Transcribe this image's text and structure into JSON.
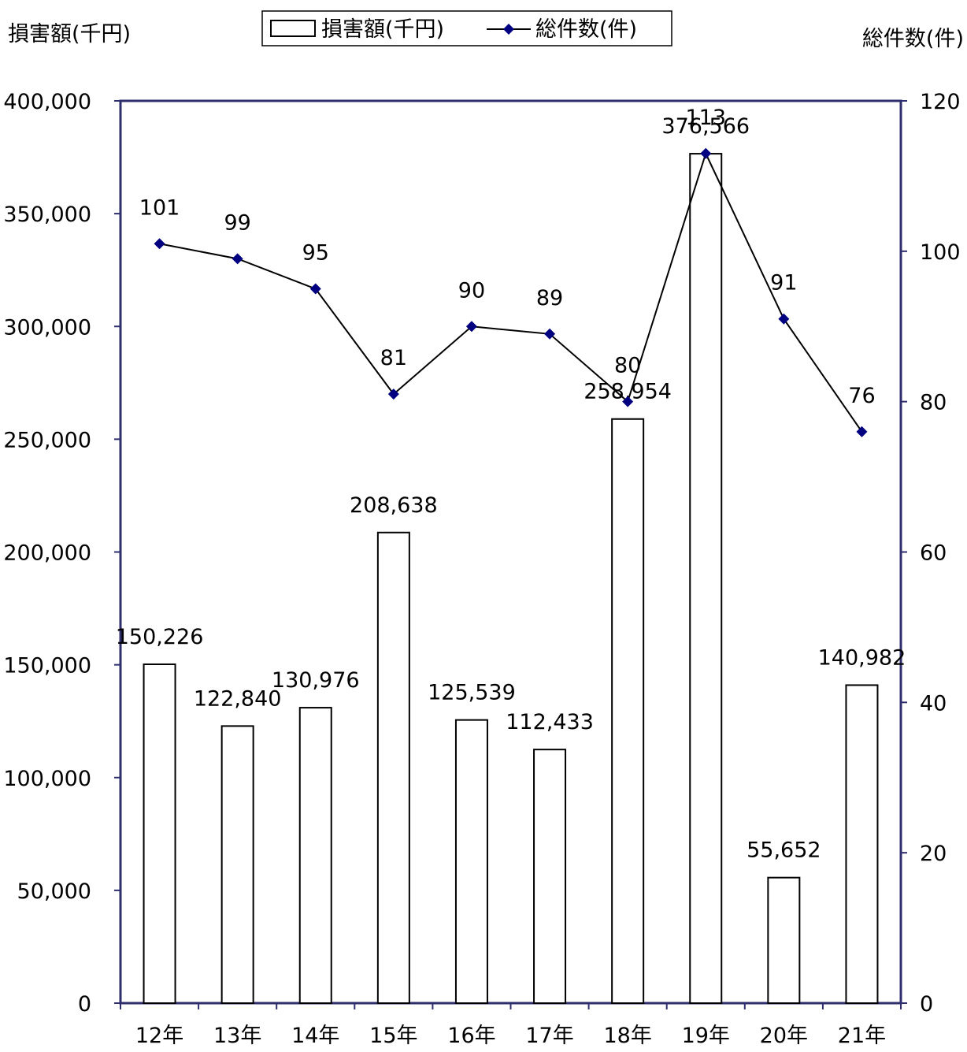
{
  "chart_data": {
    "type": "bar+line",
    "categories": [
      "12年",
      "13年",
      "14年",
      "15年",
      "16年",
      "17年",
      "18年",
      "19年",
      "20年",
      "21年"
    ],
    "series": [
      {
        "name": "損害額(千円)",
        "type": "bar",
        "axis": "left",
        "values": [
          150226,
          122840,
          130976,
          208638,
          125539,
          112433,
          258954,
          376566,
          55652,
          140982
        ],
        "labels": [
          "150,226",
          "122,840",
          "130,976",
          "208,638",
          "125,539",
          "112,433",
          "258,954",
          "376,566",
          "55,652",
          "140,982"
        ]
      },
      {
        "name": "総件数(件)",
        "type": "line",
        "axis": "right",
        "values": [
          101,
          99,
          95,
          81,
          90,
          89,
          80,
          113,
          91,
          76
        ],
        "labels": [
          "101",
          "99",
          "95",
          "81",
          "90",
          "89",
          "80",
          "113",
          "91",
          "76"
        ],
        "color": "#000080"
      }
    ],
    "y_left": {
      "label": "損害額(千円)",
      "ylim": [
        0,
        400000
      ],
      "ticks": [
        "0",
        "50,000",
        "100,000",
        "150,000",
        "200,000",
        "250,000",
        "300,000",
        "350,000",
        "400,000"
      ]
    },
    "y_right": {
      "label": "総件数(件)",
      "ylim": [
        0,
        120
      ],
      "ticks": [
        "0",
        "20",
        "40",
        "60",
        "80",
        "100",
        "120"
      ]
    },
    "legend": {
      "position": "top-center",
      "entries": [
        "損害額(千円)",
        "総件数(件)"
      ]
    },
    "grid": false,
    "colors": {
      "frame": "#2e2e6e",
      "line": "#000000",
      "marker": "#000080",
      "bar_fill": "#ffffff",
      "bar_stroke": "#000000"
    }
  }
}
